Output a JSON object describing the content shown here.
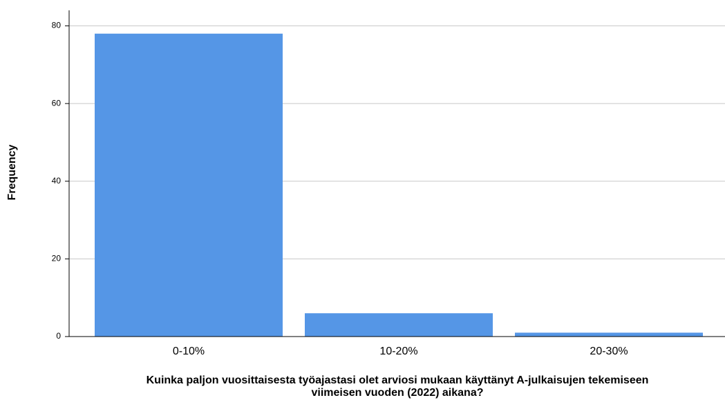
{
  "chart_data": {
    "type": "bar",
    "categories": [
      "0-10%",
      "10-20%",
      "20-30%"
    ],
    "values": [
      78,
      6,
      1
    ],
    "color": "#5596e6",
    "ylabel": "Frequency",
    "xlabel": [
      "Kuinka paljon vuosittaisesta työajastasi olet arviosi mukaan käyttänyt A-julkaisujen tekemiseen",
      "viimeisen vuoden (2022) aikana?"
    ],
    "ylim": [
      0,
      84
    ],
    "yticks": [
      0,
      20,
      40,
      60,
      80
    ],
    "grid": true
  }
}
